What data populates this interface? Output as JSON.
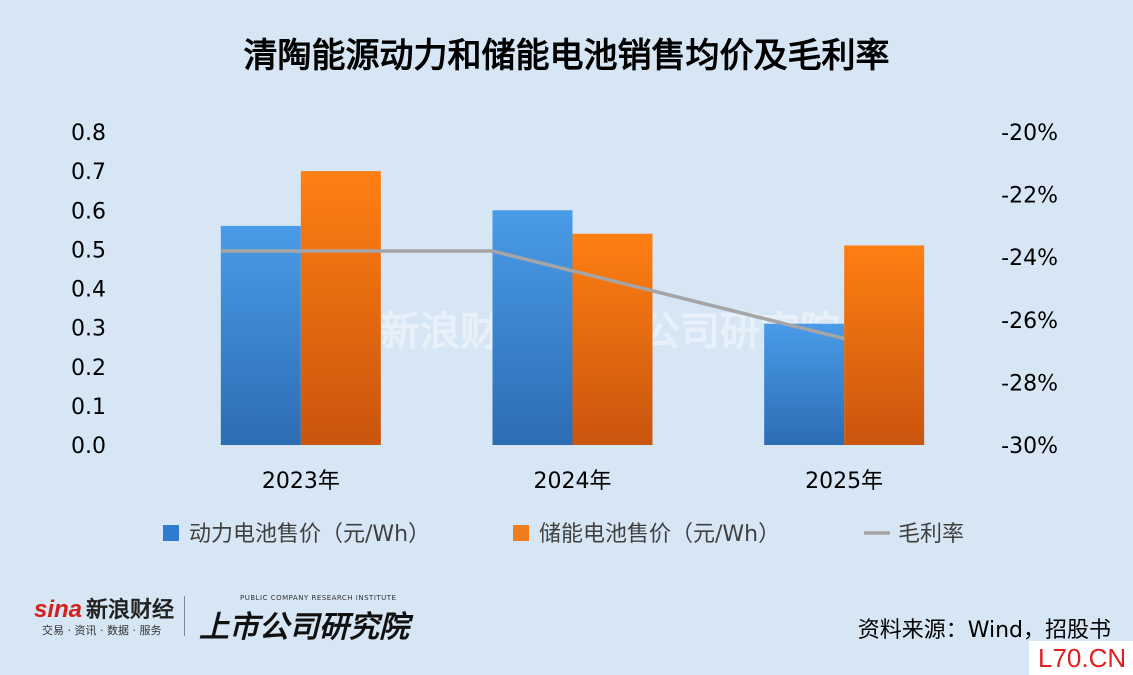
{
  "chart_data": {
    "type": "bar",
    "title": "清陶能源动力和储能电池销售均价及毛利率",
    "categories": [
      "2023年",
      "2024年",
      "2025年"
    ],
    "series": [
      {
        "name": "动力电池售价（元/Wh）",
        "kind": "bar",
        "axis": "left",
        "color": "#2e7bcf",
        "values": [
          0.56,
          0.6,
          0.31
        ]
      },
      {
        "name": "储能电池售价（元/Wh）",
        "kind": "bar",
        "axis": "left",
        "color": "#f07d1c",
        "values": [
          0.7,
          0.54,
          0.51
        ]
      },
      {
        "name": "毛利率",
        "kind": "line",
        "axis": "right",
        "color": "#a5a5a5",
        "values": [
          -0.238,
          -0.238,
          -0.266
        ]
      }
    ],
    "y_left": {
      "min": 0,
      "max": 0.8,
      "ticks": [
        "0.0",
        "0.1",
        "0.2",
        "0.3",
        "0.4",
        "0.5",
        "0.6",
        "0.7",
        "0.8"
      ]
    },
    "y_right": {
      "min": -0.3,
      "max": -0.2,
      "ticks": [
        "-30%",
        "-28%",
        "-26%",
        "-24%",
        "-22%",
        "-20%"
      ]
    },
    "legend": {
      "position": "bottom"
    },
    "grid": false
  },
  "footer": {
    "sina_mark": "sina",
    "sina_name": "新浪财经",
    "sina_sub": "交易 · 资讯 · 数据 · 服务",
    "institute_en": "PUBLIC COMPANY RESEARCH INSTITUTE",
    "institute_cn": "上市公司研究院",
    "source": "资料来源：Wind，招股书",
    "corner": "L70.CN"
  }
}
